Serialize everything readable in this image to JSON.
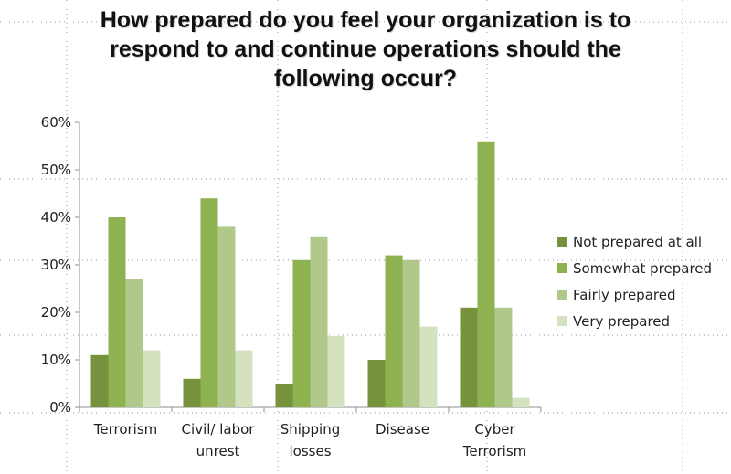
{
  "title_lines": [
    "How prepared do you feel your organization is to",
    "respond to and continue operations should the",
    "following occur?"
  ],
  "chart_data": {
    "type": "bar",
    "title": "How prepared do you feel your organization is to respond to and continue operations should the following occur?",
    "categories": [
      [
        "Terrorism"
      ],
      [
        "Civil/ labor",
        "unrest"
      ],
      [
        "Shipping",
        "losses"
      ],
      [
        "Disease"
      ],
      [
        "Cyber",
        "Terrorism"
      ]
    ],
    "series": [
      {
        "name": "Not prepared at all",
        "color": "#76923c",
        "values": [
          11,
          6,
          5,
          10,
          21
        ]
      },
      {
        "name": "Somewhat prepared",
        "color": "#8db24f",
        "values": [
          40,
          44,
          31,
          32,
          56
        ]
      },
      {
        "name": "Fairly prepared",
        "color": "#b0c98a",
        "values": [
          27,
          38,
          36,
          31,
          21
        ]
      },
      {
        "name": "Very prepared",
        "color": "#d5e2bf",
        "values": [
          12,
          12,
          15,
          17,
          2
        ]
      }
    ],
    "yticks": [
      "0%",
      "10%",
      "20%",
      "30%",
      "40%",
      "50%",
      "60%"
    ],
    "ylim": [
      0,
      60
    ],
    "unit": "%",
    "grid": false,
    "legend": "right"
  }
}
